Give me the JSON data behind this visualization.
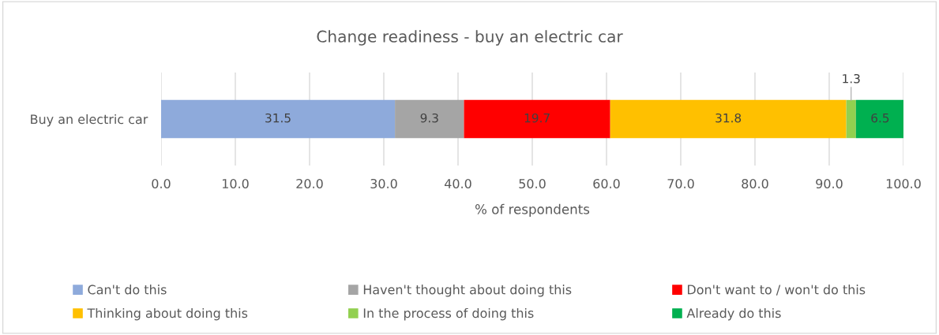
{
  "chart_data": {
    "type": "bar",
    "orientation": "horizontal",
    "stacked": true,
    "title": "Change readiness - buy an electric car",
    "xlabel": "% of respondents",
    "categories": [
      "Buy an electric car"
    ],
    "series": [
      {
        "name": "Can't do this",
        "color": "#8eaadb",
        "values": [
          31.5
        ]
      },
      {
        "name": "Haven't thought about doing this",
        "color": "#a5a5a5",
        "values": [
          9.3
        ]
      },
      {
        "name": "Don't want to / won't do this",
        "color": "#ff0000",
        "values": [
          19.7
        ]
      },
      {
        "name": "Thinking about doing this",
        "color": "#ffc000",
        "values": [
          31.8
        ]
      },
      {
        "name": "In the process of doing this",
        "color": "#92d050",
        "values": [
          1.3
        ]
      },
      {
        "name": "Already do this",
        "color": "#00b050",
        "values": [
          6.5
        ]
      }
    ],
    "xlim": [
      0,
      100
    ],
    "xticks": [
      {
        "value": 0,
        "label": "0.0"
      },
      {
        "value": 10,
        "label": "10.0"
      },
      {
        "value": 20,
        "label": "20.0"
      },
      {
        "value": 30,
        "label": "30.0"
      },
      {
        "value": 40,
        "label": "40.0"
      },
      {
        "value": 50,
        "label": "50.0"
      },
      {
        "value": 60,
        "label": "60.0"
      },
      {
        "value": 70,
        "label": "70.0"
      },
      {
        "value": 80,
        "label": "80.0"
      },
      {
        "value": 90,
        "label": "90.0"
      },
      {
        "value": 100,
        "label": "100.0"
      }
    ],
    "grid": "x",
    "legend": "bottom",
    "data_labels": true
  }
}
